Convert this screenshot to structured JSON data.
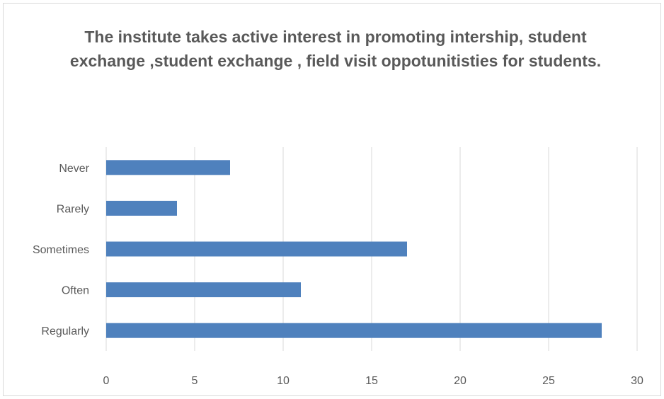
{
  "chart_data": {
    "type": "bar",
    "orientation": "horizontal",
    "title": "The institute takes active interest in promoting intership, student exchange ,student exchange , field visit oppotunitisties for students.",
    "categories": [
      "Never",
      "Rarely",
      "Sometimes",
      "Often",
      "Regularly"
    ],
    "values": [
      7,
      4,
      17,
      11,
      28
    ],
    "xlim": [
      0,
      30
    ],
    "xticks": [
      0,
      5,
      10,
      15,
      20,
      25,
      30
    ],
    "xlabel": "",
    "ylabel": "",
    "grid": "vertical",
    "bar_color": "#4F81BD"
  }
}
